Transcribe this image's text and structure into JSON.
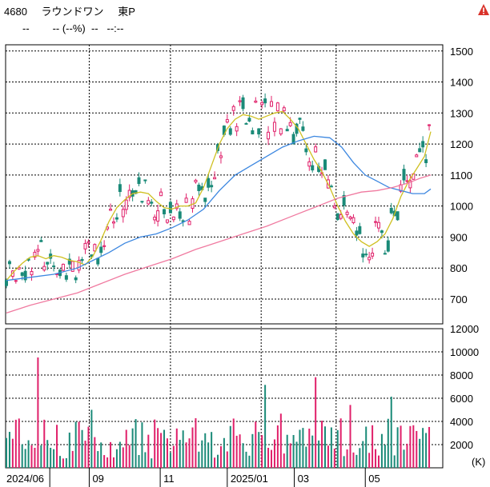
{
  "header": {
    "code": "4680",
    "name": "ラウンドワン",
    "market": "東P",
    "price": "--",
    "change": "-- (--%)",
    "volume": "--",
    "time": "--:--"
  },
  "icons": {
    "warning": "warning-icon"
  },
  "colors": {
    "up": "#e0206a",
    "down": "#1a8a78",
    "ma_short": "#cfc021",
    "ma_mid": "#3c87e0",
    "ma_long": "#f07aa0",
    "grid": "#000000"
  },
  "chart_data": {
    "type": "candlestick",
    "price_axis": {
      "ylim": [
        620,
        1520
      ],
      "ticks": [
        700,
        800,
        900,
        1000,
        1100,
        1200,
        1300,
        1400,
        1500
      ]
    },
    "volume_axis": {
      "ylim": [
        0,
        12000
      ],
      "ticks": [
        2000,
        4000,
        6000,
        8000,
        10000,
        12000
      ],
      "unit": "(K)"
    },
    "x_labels": [
      "2024/06",
      "09",
      "11",
      "2025/01",
      "03",
      "05"
    ],
    "series": [
      {
        "name": "ma_short",
        "points": [
          [
            0,
            760
          ],
          [
            10,
            790
          ],
          [
            20,
            815
          ],
          [
            30,
            835
          ],
          [
            40,
            840
          ],
          [
            50,
            830
          ],
          [
            60,
            840
          ],
          [
            70,
            835
          ],
          [
            80,
            825
          ],
          [
            90,
            820
          ],
          [
            100,
            810
          ],
          [
            110,
            840
          ],
          [
            120,
            890
          ],
          [
            130,
            950
          ],
          [
            140,
            995
          ],
          [
            150,
            1020
          ],
          [
            160,
            1040
          ],
          [
            170,
            1045
          ],
          [
            180,
            1040
          ],
          [
            190,
            1015
          ],
          [
            200,
            995
          ],
          [
            210,
            990
          ],
          [
            220,
            1000
          ],
          [
            230,
            1000
          ],
          [
            240,
            1010
          ],
          [
            250,
            1060
          ],
          [
            260,
            1130
          ],
          [
            270,
            1200
          ],
          [
            280,
            1250
          ],
          [
            290,
            1280
          ],
          [
            300,
            1295
          ],
          [
            310,
            1290
          ],
          [
            320,
            1280
          ],
          [
            330,
            1290
          ],
          [
            340,
            1300
          ],
          [
            350,
            1305
          ],
          [
            360,
            1280
          ],
          [
            370,
            1250
          ],
          [
            380,
            1200
          ],
          [
            390,
            1150
          ],
          [
            400,
            1110
          ],
          [
            410,
            1060
          ],
          [
            420,
            1000
          ],
          [
            430,
            950
          ],
          [
            440,
            910
          ],
          [
            450,
            885
          ],
          [
            460,
            870
          ],
          [
            470,
            885
          ],
          [
            480,
            910
          ],
          [
            490,
            960
          ],
          [
            500,
            1030
          ],
          [
            510,
            1080
          ],
          [
            520,
            1120
          ],
          [
            530,
            1160
          ],
          [
            538,
            1240
          ]
        ]
      },
      {
        "name": "ma_mid",
        "points": [
          [
            0,
            760
          ],
          [
            30,
            770
          ],
          [
            60,
            780
          ],
          [
            90,
            800
          ],
          [
            110,
            825
          ],
          [
            130,
            850
          ],
          [
            150,
            880
          ],
          [
            170,
            900
          ],
          [
            190,
            910
          ],
          [
            210,
            930
          ],
          [
            230,
            955
          ],
          [
            250,
            990
          ],
          [
            270,
            1050
          ],
          [
            290,
            1100
          ],
          [
            310,
            1130
          ],
          [
            330,
            1160
          ],
          [
            350,
            1190
          ],
          [
            370,
            1210
          ],
          [
            390,
            1225
          ],
          [
            410,
            1220
          ],
          [
            425,
            1190
          ],
          [
            440,
            1140
          ],
          [
            455,
            1100
          ],
          [
            470,
            1080
          ],
          [
            485,
            1060
          ],
          [
            500,
            1050
          ],
          [
            515,
            1040
          ],
          [
            530,
            1040
          ],
          [
            538,
            1055
          ]
        ]
      },
      {
        "name": "ma_long",
        "points": [
          [
            0,
            655
          ],
          [
            30,
            680
          ],
          [
            60,
            700
          ],
          [
            90,
            720
          ],
          [
            120,
            750
          ],
          [
            150,
            780
          ],
          [
            180,
            805
          ],
          [
            210,
            830
          ],
          [
            240,
            860
          ],
          [
            270,
            885
          ],
          [
            300,
            910
          ],
          [
            330,
            935
          ],
          [
            360,
            965
          ],
          [
            390,
            995
          ],
          [
            420,
            1025
          ],
          [
            450,
            1045
          ],
          [
            470,
            1050
          ],
          [
            490,
            1060
          ],
          [
            510,
            1075
          ],
          [
            525,
            1090
          ],
          [
            538,
            1100
          ]
        ]
      }
    ]
  }
}
